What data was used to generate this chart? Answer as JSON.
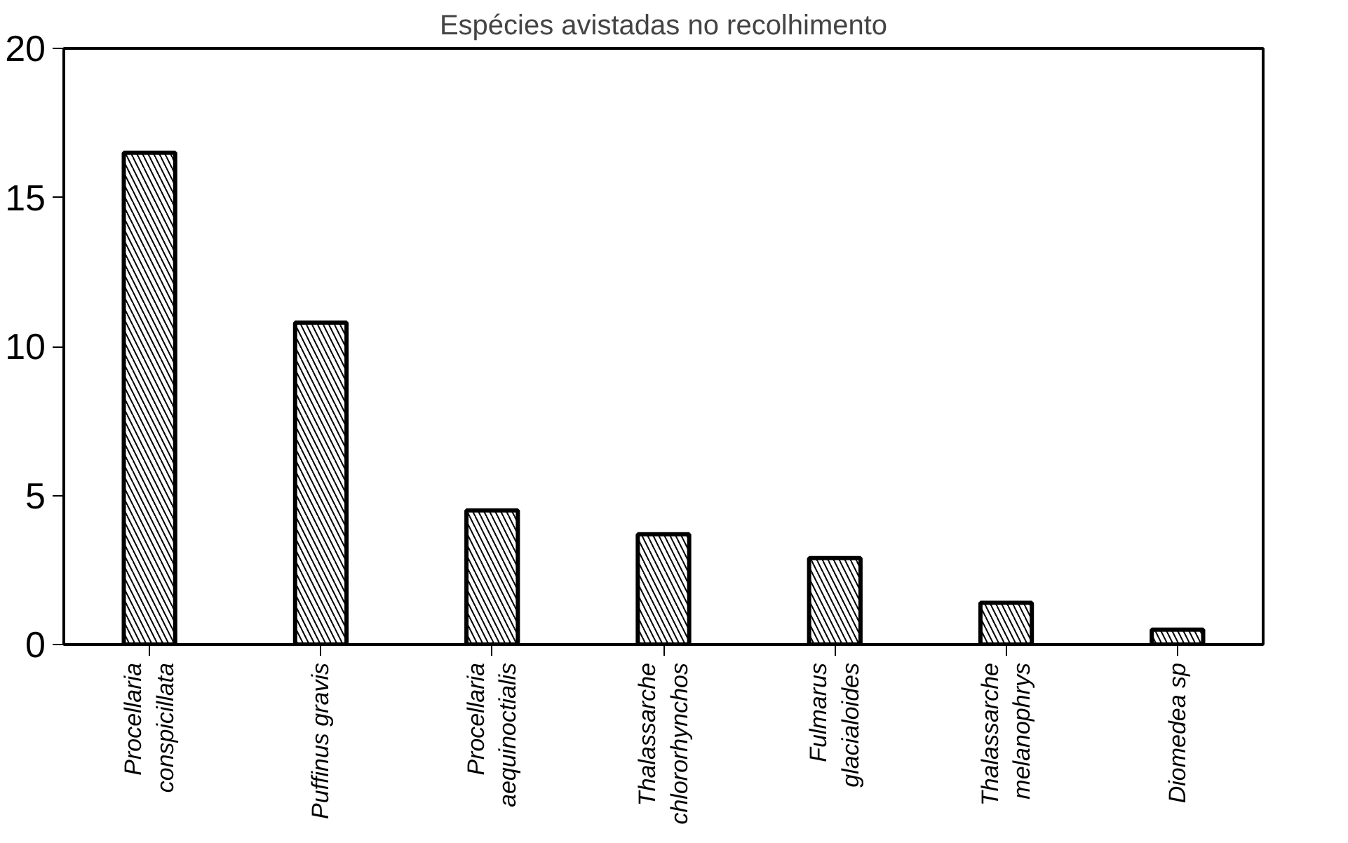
{
  "chart_data": {
    "type": "bar",
    "title": "Espécies avistadas no recolhimento",
    "categories": [
      "Procellaria\nconspicillata",
      "Puffinus gravis",
      "Procellaria\naequinoctialis",
      "Thalassarche\nchlororhynchos",
      "Fulmarus\nglacialoides",
      "Thalassarche\nmelanophrys",
      "Diomedea sp"
    ],
    "values": [
      16.5,
      10.8,
      4.5,
      3.7,
      2.9,
      1.4,
      0.5
    ],
    "color": "#000000",
    "ylim": [
      0,
      20
    ],
    "yticks": [
      0,
      5,
      10,
      15,
      20
    ],
    "grid": false
  }
}
